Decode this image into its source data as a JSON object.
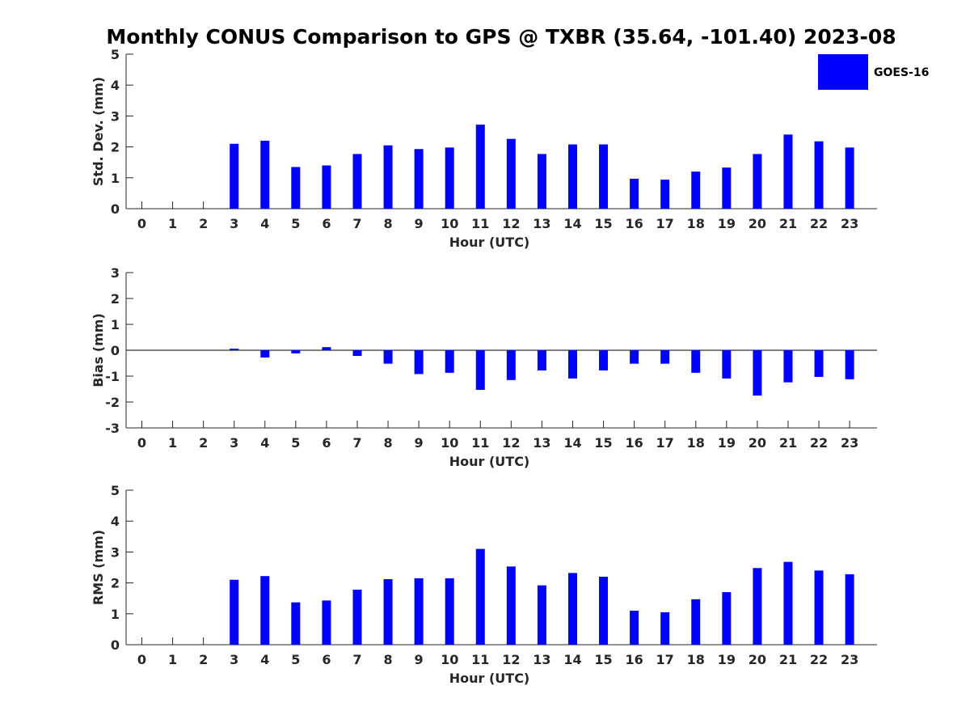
{
  "title": "Monthly CONUS Comparison to GPS @ TXBR (35.64, -101.40) 2023-08",
  "legend": {
    "label": "GOES-16",
    "color": "#0000ff"
  },
  "chart_data": [
    {
      "type": "bar",
      "name": "std-dev",
      "xlabel": "Hour (UTC)",
      "ylabel": "Std. Dev. (mm)",
      "ylim": [
        0,
        5
      ],
      "yticks": [
        0,
        1,
        2,
        3,
        4,
        5
      ],
      "categories": [
        "0",
        "1",
        "2",
        "3",
        "4",
        "5",
        "6",
        "7",
        "8",
        "9",
        "10",
        "11",
        "12",
        "13",
        "14",
        "15",
        "16",
        "17",
        "18",
        "19",
        "20",
        "21",
        "22",
        "23"
      ],
      "series": [
        {
          "name": "GOES-16",
          "values": [
            null,
            null,
            null,
            2.1,
            2.2,
            1.35,
            1.4,
            1.77,
            2.05,
            1.93,
            1.98,
            2.72,
            2.26,
            1.77,
            2.08,
            2.08,
            0.97,
            0.94,
            1.2,
            1.33,
            1.77,
            2.4,
            2.18,
            1.98
          ]
        }
      ]
    },
    {
      "type": "bar",
      "name": "bias",
      "xlabel": "Hour (UTC)",
      "ylabel": "Bias (mm)",
      "ylim": [
        -3,
        3
      ],
      "yticks": [
        -3,
        -2,
        -1,
        0,
        1,
        2,
        3
      ],
      "zero_line": true,
      "categories": [
        "0",
        "1",
        "2",
        "3",
        "4",
        "5",
        "6",
        "7",
        "8",
        "9",
        "10",
        "11",
        "12",
        "13",
        "14",
        "15",
        "16",
        "17",
        "18",
        "19",
        "20",
        "21",
        "22",
        "23"
      ],
      "series": [
        {
          "name": "GOES-16",
          "values": [
            null,
            null,
            null,
            0.06,
            -0.28,
            -0.12,
            0.12,
            -0.22,
            -0.52,
            -0.92,
            -0.87,
            -1.53,
            -1.15,
            -0.78,
            -1.09,
            -0.78,
            -0.52,
            -0.52,
            -0.87,
            -1.09,
            -1.75,
            -1.24,
            -1.03,
            -1.12
          ]
        }
      ]
    },
    {
      "type": "bar",
      "name": "rms",
      "xlabel": "Hour (UTC)",
      "ylabel": "RMS (mm)",
      "ylim": [
        0,
        5
      ],
      "yticks": [
        0,
        1,
        2,
        3,
        4,
        5
      ],
      "categories": [
        "0",
        "1",
        "2",
        "3",
        "4",
        "5",
        "6",
        "7",
        "8",
        "9",
        "10",
        "11",
        "12",
        "13",
        "14",
        "15",
        "16",
        "17",
        "18",
        "19",
        "20",
        "21",
        "22",
        "23"
      ],
      "series": [
        {
          "name": "GOES-16",
          "values": [
            null,
            null,
            null,
            2.1,
            2.22,
            1.37,
            1.43,
            1.78,
            2.12,
            2.15,
            2.15,
            3.1,
            2.53,
            1.92,
            2.32,
            2.2,
            1.1,
            1.05,
            1.47,
            1.7,
            2.48,
            2.68,
            2.4,
            2.28
          ]
        }
      ]
    }
  ]
}
